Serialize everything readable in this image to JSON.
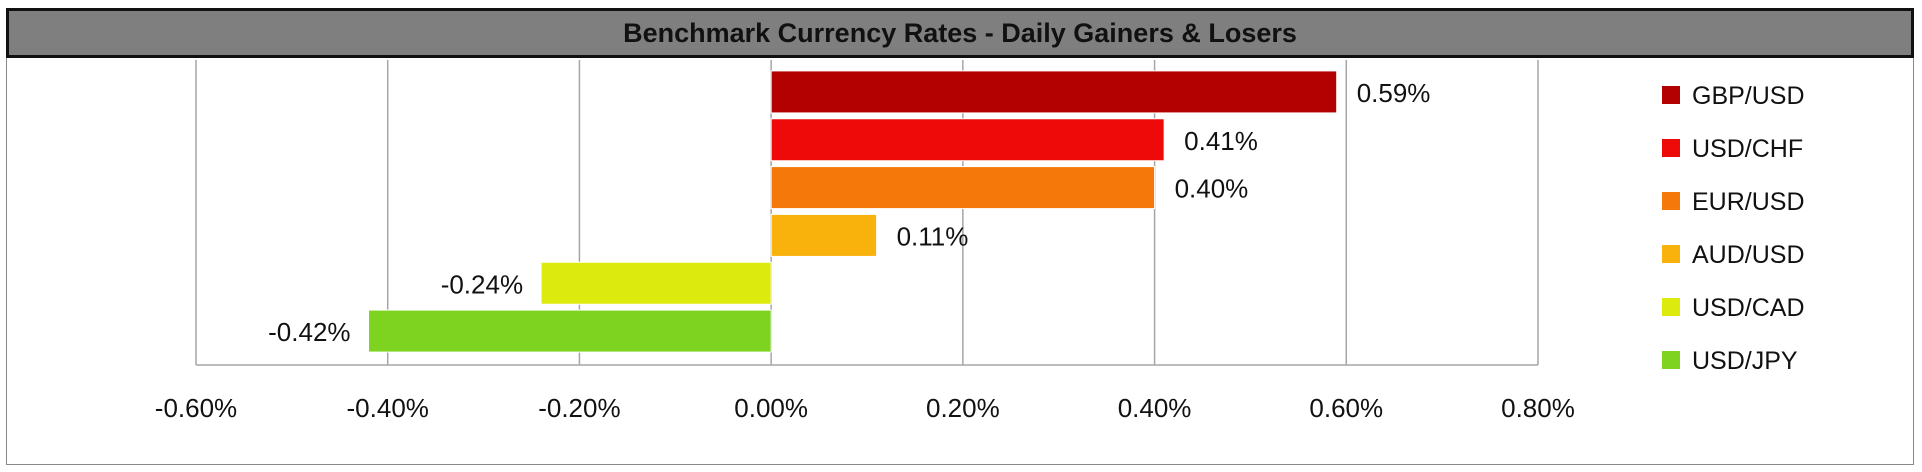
{
  "chart_data": {
    "type": "bar",
    "orientation": "horizontal",
    "title": "Benchmark Currency Rates - Daily Gainers & Losers",
    "xlabel": "",
    "ylabel": "",
    "xlim": [
      -0.6,
      0.8
    ],
    "x_ticks": [
      "-0.60%",
      "-0.40%",
      "-0.20%",
      "0.00%",
      "0.20%",
      "0.40%",
      "0.60%",
      "0.80%"
    ],
    "x_tick_values": [
      -0.6,
      -0.4,
      -0.2,
      0.0,
      0.2,
      0.4,
      0.6,
      0.8
    ],
    "grid": "vertical",
    "legend": "right",
    "bars": [
      {
        "category": "GBP/USD",
        "value": 0.59,
        "label": "0.59%",
        "color": "#b30000"
      },
      {
        "category": "USD/CHF",
        "value": 0.41,
        "label": "0.41%",
        "color": "#ef0a0a"
      },
      {
        "category": "EUR/USD",
        "value": 0.4,
        "label": "0.40%",
        "color": "#f5780a"
      },
      {
        "category": "AUD/USD",
        "value": 0.11,
        "label": "0.11%",
        "color": "#f9b20c"
      },
      {
        "category": "USD/CAD",
        "value": -0.24,
        "label": "-0.24%",
        "color": "#dcea0e"
      },
      {
        "category": "USD/JPY",
        "value": -0.42,
        "label": "-0.42%",
        "color": "#7ed321"
      }
    ]
  }
}
